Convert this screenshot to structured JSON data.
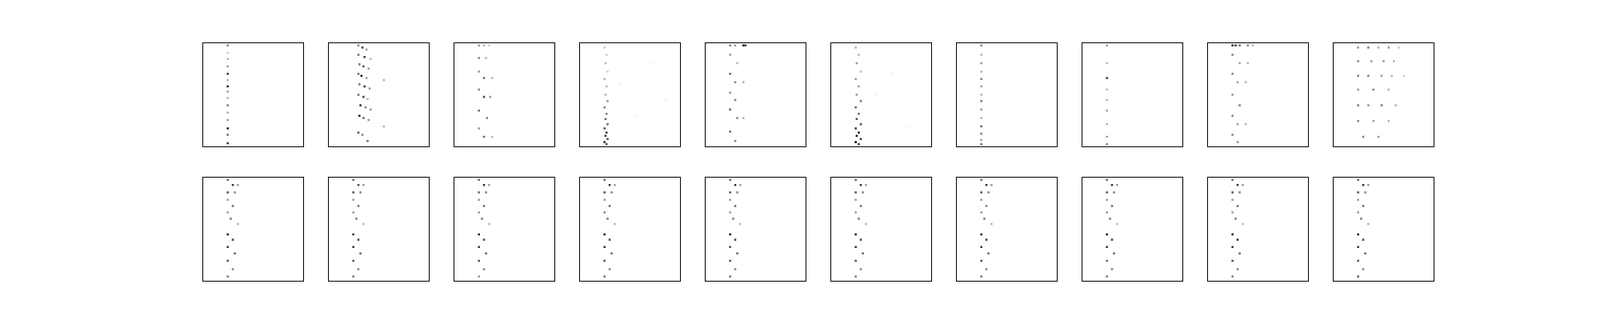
{
  "chart_data": [
    {
      "type": "scatter",
      "xlim": [
        0,
        100
      ],
      "ylim": [
        0,
        100
      ],
      "tick_labels": false,
      "color": "#000000",
      "marker": "square",
      "x": [
        25,
        25,
        25,
        25,
        25,
        25,
        25,
        25,
        25,
        25,
        25,
        25,
        25,
        25,
        25
      ],
      "values": [
        97,
        90,
        84,
        77,
        70,
        64,
        58,
        53,
        47,
        40,
        33,
        26,
        18,
        12,
        4
      ],
      "intensity": [
        0.5,
        0.2,
        0.3,
        0.4,
        0.8,
        0.3,
        0.9,
        0.4,
        0.3,
        0.5,
        0.3,
        0.4,
        0.9,
        0.6,
        0.8
      ]
    },
    {
      "type": "scatter",
      "xlim": [
        0,
        100
      ],
      "ylim": [
        0,
        100
      ],
      "tick_labels": false,
      "color": "#000000",
      "marker": "square",
      "x": [
        30,
        34,
        38,
        30,
        36,
        42,
        31,
        35,
        40,
        30,
        33,
        38,
        55,
        31,
        36,
        41,
        30,
        35,
        39,
        32,
        37,
        42,
        31,
        35,
        40,
        55,
        30,
        34,
        39
      ],
      "values": [
        97,
        95,
        93,
        88,
        86,
        84,
        79,
        77,
        75,
        70,
        68,
        66,
        64,
        60,
        58,
        56,
        50,
        48,
        46,
        40,
        38,
        36,
        30,
        28,
        26,
        20,
        14,
        12,
        6
      ],
      "intensity": [
        0.5,
        0.7,
        0.4,
        0.6,
        0.8,
        0.3,
        0.5,
        0.7,
        0.4,
        0.6,
        0.9,
        0.4,
        0.3,
        0.5,
        0.8,
        0.4,
        0.6,
        0.7,
        0.3,
        0.8,
        0.5,
        0.4,
        0.9,
        0.6,
        0.4,
        0.3,
        0.7,
        0.5,
        0.6
      ]
    },
    {
      "type": "scatter",
      "xlim": [
        0,
        100
      ],
      "ylim": [
        0,
        100
      ],
      "tick_labels": false,
      "color": "#000000",
      "marker": "square",
      "x": [
        25,
        30,
        35,
        25,
        32,
        25,
        30,
        38,
        25,
        30,
        36,
        25,
        33,
        25,
        30,
        38
      ],
      "values": [
        97,
        97,
        97,
        85,
        85,
        72,
        66,
        66,
        55,
        48,
        48,
        35,
        28,
        18,
        10,
        10
      ],
      "intensity": [
        0.4,
        0.3,
        0.2,
        0.5,
        0.3,
        0.4,
        0.6,
        0.3,
        0.5,
        0.7,
        0.4,
        0.6,
        0.5,
        0.4,
        0.6,
        0.3
      ]
    },
    {
      "type": "scatter",
      "xlim": [
        0,
        100
      ],
      "ylim": [
        0,
        100
      ],
      "tick_labels": false,
      "color": "#000000",
      "marker": "square",
      "x": [
        25,
        27,
        26,
        28,
        25,
        27,
        26,
        28,
        25,
        27,
        26,
        28,
        25,
        27,
        26,
        28,
        25,
        27,
        40,
        55,
        70,
        85
      ],
      "values": [
        95,
        88,
        80,
        72,
        65,
        58,
        50,
        44,
        38,
        32,
        27,
        22,
        18,
        14,
        11,
        8,
        5,
        3,
        60,
        30,
        80,
        45
      ],
      "intensity": [
        0.2,
        0.2,
        0.3,
        0.2,
        0.3,
        0.3,
        0.3,
        0.4,
        0.5,
        0.5,
        0.6,
        0.6,
        0.7,
        0.8,
        0.8,
        0.7,
        0.8,
        0.7,
        0.05,
        0.05,
        0.05,
        0.05
      ]
    },
    {
      "type": "scatter",
      "xlim": [
        0,
        100
      ],
      "ylim": [
        0,
        100
      ],
      "tick_labels": false,
      "color": "#000000",
      "marker": "square",
      "x": [
        25,
        30,
        38,
        40,
        25,
        32,
        25,
        30,
        38,
        25,
        30,
        25,
        32,
        38,
        25,
        30
      ],
      "values": [
        97,
        97,
        97,
        97,
        88,
        80,
        70,
        62,
        62,
        52,
        45,
        36,
        28,
        28,
        15,
        6
      ],
      "intensity": [
        0.5,
        0.4,
        0.9,
        0.8,
        0.4,
        0.3,
        0.6,
        0.5,
        0.3,
        0.4,
        0.5,
        0.6,
        0.5,
        0.3,
        0.6,
        0.5
      ]
    },
    {
      "type": "scatter",
      "xlim": [
        0,
        100
      ],
      "ylim": [
        0,
        100
      ],
      "tick_labels": false,
      "color": "#000000",
      "marker": "square",
      "x": [
        25,
        28,
        26,
        30,
        25,
        28,
        26,
        30,
        25,
        28,
        26,
        30,
        25,
        28,
        26,
        30,
        25,
        28,
        45,
        60,
        75
      ],
      "values": [
        95,
        88,
        80,
        72,
        65,
        58,
        50,
        44,
        38,
        32,
        27,
        22,
        18,
        14,
        11,
        8,
        5,
        3,
        50,
        70,
        20
      ],
      "intensity": [
        0.3,
        0.3,
        0.4,
        0.3,
        0.4,
        0.4,
        0.4,
        0.5,
        0.6,
        0.6,
        0.7,
        0.7,
        0.8,
        0.9,
        0.9,
        0.8,
        0.9,
        0.8,
        0.05,
        0.05,
        0.05
      ]
    },
    {
      "type": "scatter",
      "xlim": [
        0,
        100
      ],
      "ylim": [
        0,
        100
      ],
      "tick_labels": false,
      "color": "#000000",
      "marker": "square",
      "x": [
        25,
        25,
        25,
        25,
        25,
        25,
        25,
        25,
        25,
        25,
        25,
        25,
        25,
        25
      ],
      "values": [
        97,
        88,
        80,
        72,
        65,
        58,
        50,
        44,
        36,
        28,
        20,
        13,
        7,
        3
      ],
      "intensity": [
        0.5,
        0.3,
        0.4,
        0.3,
        0.5,
        0.4,
        0.3,
        0.5,
        0.4,
        0.3,
        0.6,
        0.5,
        0.4,
        0.6
      ]
    },
    {
      "type": "scatter",
      "xlim": [
        0,
        100
      ],
      "ylim": [
        0,
        100
      ],
      "tick_labels": false,
      "color": "#000000",
      "marker": "square",
      "x": [
        25,
        25,
        25,
        25,
        25,
        25,
        25,
        25,
        25
      ],
      "values": [
        97,
        80,
        66,
        55,
        45,
        35,
        22,
        10,
        3
      ],
      "intensity": [
        0.4,
        0.3,
        0.8,
        0.3,
        0.3,
        0.4,
        0.3,
        0.4,
        0.5
      ]
    },
    {
      "type": "scatter",
      "xlim": [
        0,
        100
      ],
      "ylim": [
        0,
        100
      ],
      "tick_labels": false,
      "color": "#000000",
      "marker": "square",
      "x": [
        25,
        28,
        32,
        40,
        45,
        25,
        32,
        40,
        25,
        30,
        38,
        25,
        32,
        25,
        30,
        38,
        25,
        30
      ],
      "values": [
        97,
        97,
        97,
        97,
        97,
        88,
        80,
        80,
        70,
        62,
        62,
        50,
        40,
        30,
        22,
        22,
        12,
        5
      ],
      "intensity": [
        0.9,
        0.8,
        0.6,
        0.5,
        0.3,
        0.5,
        0.4,
        0.3,
        0.5,
        0.4,
        0.3,
        0.4,
        0.5,
        0.5,
        0.4,
        0.3,
        0.5,
        0.4
      ]
    },
    {
      "type": "scatter",
      "xlim": [
        0,
        100
      ],
      "ylim": [
        0,
        100
      ],
      "tick_labels": false,
      "color": "#000000",
      "marker": "square",
      "x": [
        25,
        35,
        45,
        55,
        65,
        25,
        38,
        50,
        60,
        25,
        35,
        48,
        58,
        70,
        25,
        40,
        55,
        25,
        35,
        48,
        62,
        25,
        40,
        55,
        30,
        45
      ],
      "values": [
        95,
        95,
        95,
        95,
        95,
        82,
        82,
        82,
        82,
        68,
        68,
        68,
        68,
        68,
        55,
        55,
        55,
        40,
        40,
        40,
        40,
        25,
        25,
        25,
        10,
        10
      ],
      "intensity": [
        0.4,
        0.5,
        0.3,
        0.4,
        0.2,
        0.5,
        0.4,
        0.4,
        0.3,
        0.5,
        0.5,
        0.4,
        0.3,
        0.2,
        0.4,
        0.5,
        0.3,
        0.5,
        0.4,
        0.5,
        0.3,
        0.5,
        0.4,
        0.3,
        0.5,
        0.4
      ]
    },
    {
      "type": "scatter",
      "xlim": [
        0,
        100
      ],
      "ylim": [
        0,
        100
      ],
      "tick_labels": false,
      "color": "#000000",
      "marker": "square",
      "x": [
        25,
        30,
        35,
        25,
        32,
        25,
        30,
        25,
        28,
        35,
        25,
        30,
        25,
        32,
        25,
        30,
        25
      ],
      "values": [
        97,
        92,
        92,
        85,
        85,
        78,
        72,
        66,
        60,
        55,
        45,
        40,
        33,
        27,
        20,
        12,
        5
      ],
      "intensity": [
        0.6,
        0.8,
        0.4,
        0.7,
        0.5,
        0.4,
        0.6,
        0.4,
        0.5,
        0.3,
        0.9,
        0.7,
        0.8,
        0.6,
        0.7,
        0.5,
        0.5
      ]
    },
    {
      "type": "scatter",
      "xlim": [
        0,
        100
      ],
      "ylim": [
        0,
        100
      ],
      "tick_labels": false,
      "color": "#000000",
      "marker": "square",
      "x": [
        25,
        30,
        35,
        25,
        32,
        25,
        30,
        25,
        28,
        35,
        25,
        30,
        25,
        32,
        25,
        30,
        25
      ],
      "values": [
        97,
        92,
        92,
        85,
        85,
        78,
        72,
        66,
        60,
        55,
        45,
        40,
        33,
        27,
        20,
        12,
        5
      ],
      "intensity": [
        0.6,
        0.7,
        0.4,
        0.7,
        0.5,
        0.4,
        0.6,
        0.4,
        0.5,
        0.3,
        0.8,
        0.7,
        0.8,
        0.6,
        0.7,
        0.5,
        0.5
      ]
    },
    {
      "type": "scatter",
      "xlim": [
        0,
        100
      ],
      "ylim": [
        0,
        100
      ],
      "tick_labels": false,
      "color": "#000000",
      "marker": "square",
      "x": [
        25,
        30,
        35,
        25,
        32,
        25,
        30,
        25,
        28,
        35,
        25,
        30,
        25,
        32,
        25,
        30,
        25
      ],
      "values": [
        97,
        92,
        92,
        85,
        85,
        78,
        72,
        66,
        60,
        55,
        45,
        40,
        33,
        27,
        20,
        12,
        5
      ],
      "intensity": [
        0.6,
        0.8,
        0.4,
        0.6,
        0.5,
        0.4,
        0.6,
        0.4,
        0.5,
        0.3,
        0.9,
        0.7,
        0.8,
        0.6,
        0.7,
        0.5,
        0.4
      ]
    },
    {
      "type": "scatter",
      "xlim": [
        0,
        100
      ],
      "ylim": [
        0,
        100
      ],
      "tick_labels": false,
      "color": "#000000",
      "marker": "square",
      "x": [
        25,
        30,
        35,
        25,
        32,
        25,
        30,
        25,
        28,
        35,
        25,
        30,
        25,
        32,
        25,
        30,
        25
      ],
      "values": [
        97,
        92,
        92,
        85,
        85,
        78,
        72,
        66,
        60,
        55,
        45,
        40,
        33,
        27,
        20,
        12,
        5
      ],
      "intensity": [
        0.6,
        0.8,
        0.4,
        0.7,
        0.5,
        0.4,
        0.6,
        0.5,
        0.5,
        0.3,
        0.9,
        0.7,
        0.8,
        0.6,
        0.7,
        0.5,
        0.5
      ]
    },
    {
      "type": "scatter",
      "xlim": [
        0,
        100
      ],
      "ylim": [
        0,
        100
      ],
      "tick_labels": false,
      "color": "#000000",
      "marker": "square",
      "x": [
        25,
        30,
        35,
        25,
        32,
        25,
        30,
        25,
        28,
        35,
        25,
        30,
        25,
        32,
        25,
        30,
        25
      ],
      "values": [
        97,
        92,
        92,
        85,
        85,
        78,
        72,
        66,
        60,
        55,
        45,
        40,
        33,
        27,
        20,
        12,
        5
      ],
      "intensity": [
        0.6,
        0.8,
        0.4,
        0.7,
        0.5,
        0.4,
        0.6,
        0.4,
        0.5,
        0.3,
        0.9,
        0.7,
        0.7,
        0.6,
        0.7,
        0.5,
        0.5
      ]
    },
    {
      "type": "scatter",
      "xlim": [
        0,
        100
      ],
      "ylim": [
        0,
        100
      ],
      "tick_labels": false,
      "color": "#000000",
      "marker": "square",
      "x": [
        25,
        30,
        35,
        25,
        32,
        25,
        30,
        25,
        28,
        35,
        25,
        30,
        25,
        32,
        25,
        30,
        25
      ],
      "values": [
        97,
        92,
        92,
        85,
        85,
        78,
        72,
        66,
        60,
        55,
        45,
        40,
        33,
        27,
        20,
        12,
        5
      ],
      "intensity": [
        0.6,
        0.8,
        0.4,
        0.7,
        0.5,
        0.4,
        0.6,
        0.4,
        0.5,
        0.3,
        0.9,
        0.7,
        0.8,
        0.6,
        0.7,
        0.5,
        0.5
      ]
    },
    {
      "type": "scatter",
      "xlim": [
        0,
        100
      ],
      "ylim": [
        0,
        100
      ],
      "tick_labels": false,
      "color": "#000000",
      "marker": "square",
      "x": [
        25,
        30,
        35,
        25,
        32,
        25,
        30,
        25,
        28,
        35,
        25,
        30,
        25,
        32,
        25,
        30,
        25
      ],
      "values": [
        97,
        92,
        92,
        85,
        85,
        78,
        72,
        66,
        60,
        55,
        45,
        40,
        33,
        27,
        20,
        12,
        5
      ],
      "intensity": [
        0.6,
        0.8,
        0.4,
        0.7,
        0.5,
        0.4,
        0.5,
        0.4,
        0.5,
        0.3,
        0.9,
        0.7,
        0.8,
        0.6,
        0.7,
        0.5,
        0.5
      ]
    },
    {
      "type": "scatter",
      "xlim": [
        0,
        100
      ],
      "ylim": [
        0,
        100
      ],
      "tick_labels": false,
      "color": "#000000",
      "marker": "square",
      "x": [
        25,
        30,
        35,
        25,
        32,
        25,
        30,
        25,
        28,
        35,
        25,
        30,
        25,
        32,
        25,
        30,
        25
      ],
      "values": [
        97,
        92,
        92,
        85,
        85,
        78,
        72,
        66,
        60,
        55,
        45,
        40,
        33,
        27,
        20,
        12,
        5
      ],
      "intensity": [
        0.6,
        0.8,
        0.4,
        0.7,
        0.5,
        0.4,
        0.6,
        0.4,
        0.5,
        0.3,
        0.9,
        0.7,
        0.8,
        0.6,
        0.6,
        0.5,
        0.5
      ]
    },
    {
      "type": "scatter",
      "xlim": [
        0,
        100
      ],
      "ylim": [
        0,
        100
      ],
      "tick_labels": false,
      "color": "#000000",
      "marker": "square",
      "x": [
        25,
        30,
        35,
        25,
        32,
        25,
        30,
        25,
        28,
        35,
        25,
        30,
        25,
        32,
        25,
        30,
        25
      ],
      "values": [
        97,
        92,
        92,
        85,
        85,
        78,
        72,
        66,
        60,
        55,
        45,
        40,
        33,
        27,
        20,
        12,
        5
      ],
      "intensity": [
        0.6,
        0.8,
        0.4,
        0.7,
        0.5,
        0.4,
        0.6,
        0.4,
        0.5,
        0.3,
        0.9,
        0.8,
        0.8,
        0.6,
        0.7,
        0.5,
        0.5
      ]
    },
    {
      "type": "scatter",
      "xlim": [
        0,
        100
      ],
      "ylim": [
        0,
        100
      ],
      "tick_labels": false,
      "color": "#000000",
      "marker": "square",
      "x": [
        25,
        30,
        35,
        25,
        32,
        25,
        30,
        25,
        28,
        35,
        25,
        30,
        25,
        32,
        25,
        30,
        25
      ],
      "values": [
        97,
        92,
        92,
        85,
        85,
        78,
        72,
        66,
        60,
        55,
        45,
        40,
        33,
        27,
        20,
        12,
        5
      ],
      "intensity": [
        0.6,
        0.8,
        0.4,
        0.7,
        0.5,
        0.4,
        0.6,
        0.4,
        0.5,
        0.3,
        0.9,
        0.7,
        0.8,
        0.6,
        0.7,
        0.5,
        0.6
      ]
    }
  ]
}
